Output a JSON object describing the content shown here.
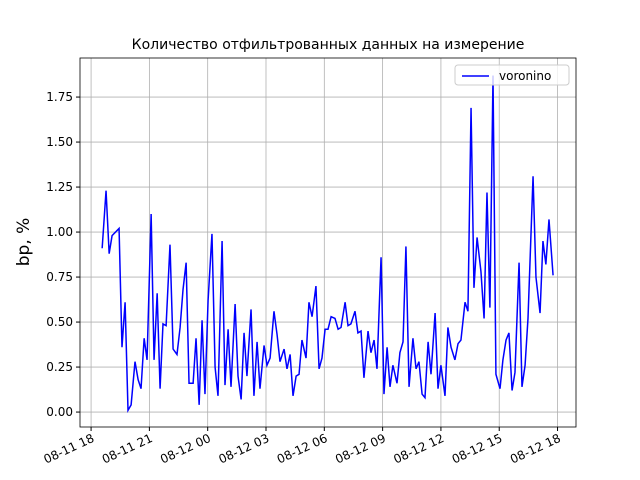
{
  "chart_data": {
    "type": "line",
    "title": "Количество отфильтрованных данных на измерение",
    "ylabel": "bp, %",
    "legend": "upper right",
    "grid": true,
    "xlim": [
      17.43,
      42.95
    ],
    "ylim": [
      -0.083,
      1.967
    ],
    "xticks": [
      {
        "value": 18,
        "label": "08-11 18"
      },
      {
        "value": 21,
        "label": "08-11 21"
      },
      {
        "value": 24,
        "label": "08-12 00"
      },
      {
        "value": 27,
        "label": "08-12 03"
      },
      {
        "value": 30,
        "label": "08-12 06"
      },
      {
        "value": 33,
        "label": "08-12 09"
      },
      {
        "value": 36,
        "label": "08-12 12"
      },
      {
        "value": 39,
        "label": "08-12 15"
      },
      {
        "value": 42,
        "label": "08-12 18"
      }
    ],
    "yticks": [
      {
        "value": 0,
        "label": "0.00"
      },
      {
        "value": 0.25,
        "label": "0.25"
      },
      {
        "value": 0.5,
        "label": "0.50"
      },
      {
        "value": 0.75,
        "label": "0.75"
      },
      {
        "value": 1,
        "label": "1.00"
      },
      {
        "value": 1.25,
        "label": "1.25"
      },
      {
        "value": 1.5,
        "label": "1.50"
      },
      {
        "value": 1.75,
        "label": "1.75"
      }
    ],
    "x": [
      18.57,
      18.77,
      18.93,
      19.08,
      19.44,
      19.59,
      19.75,
      19.9,
      20.06,
      20.26,
      20.42,
      20.57,
      20.73,
      20.88,
      21.09,
      21.24,
      21.4,
      21.55,
      21.7,
      21.86,
      22.06,
      22.22,
      22.42,
      22.58,
      22.73,
      22.89,
      23.04,
      23.25,
      23.4,
      23.56,
      23.71,
      23.86,
      24.02,
      24.22,
      24.38,
      24.53,
      24.74,
      24.89,
      25.05,
      25.2,
      25.41,
      25.56,
      25.72,
      25.87,
      26.02,
      26.23,
      26.38,
      26.54,
      26.69,
      26.9,
      27.05,
      27.21,
      27.41,
      27.57,
      27.72,
      27.93,
      28.08,
      28.24,
      28.39,
      28.55,
      28.7,
      28.85,
      29.06,
      29.21,
      29.37,
      29.57,
      29.73,
      29.88,
      30.04,
      30.19,
      30.35,
      30.55,
      30.71,
      30.86,
      31.07,
      31.22,
      31.37,
      31.58,
      31.73,
      31.89,
      32.04,
      32.25,
      32.4,
      32.56,
      32.71,
      32.92,
      33.07,
      33.23,
      33.38,
      33.53,
      33.74,
      33.89,
      34.05,
      34.2,
      34.36,
      34.56,
      34.72,
      34.87,
      35.03,
      35.18,
      35.34,
      35.49,
      35.7,
      35.85,
      36.0,
      36.21,
      36.36,
      36.52,
      36.72,
      36.88,
      37.03,
      37.24,
      37.39,
      37.55,
      37.7,
      37.86,
      38.06,
      38.22,
      38.37,
      38.52,
      38.68,
      38.83,
      39.04,
      39.19,
      39.35,
      39.5,
      39.66,
      39.81,
      40.02,
      40.17,
      40.33,
      40.48,
      40.74,
      40.89,
      41.1,
      41.25,
      41.4,
      41.56,
      41.77
    ],
    "series": [
      {
        "name": "voronino",
        "color": "#0000ff",
        "values": [
          0.91,
          1.23,
          0.88,
          0.98,
          1.02,
          0.36,
          0.61,
          0.01,
          0.04,
          0.28,
          0.18,
          0.13,
          0.41,
          0.29,
          1.1,
          0.29,
          0.66,
          0.13,
          0.49,
          0.48,
          0.93,
          0.35,
          0.32,
          0.47,
          0.68,
          0.83,
          0.16,
          0.16,
          0.41,
          0.04,
          0.51,
          0.1,
          0.62,
          0.99,
          0.25,
          0.09,
          0.95,
          0.15,
          0.46,
          0.14,
          0.6,
          0.2,
          0.07,
          0.44,
          0.2,
          0.57,
          0.09,
          0.39,
          0.13,
          0.37,
          0.26,
          0.3,
          0.56,
          0.43,
          0.28,
          0.35,
          0.24,
          0.32,
          0.09,
          0.2,
          0.21,
          0.4,
          0.3,
          0.61,
          0.53,
          0.7,
          0.24,
          0.3,
          0.46,
          0.46,
          0.53,
          0.52,
          0.46,
          0.47,
          0.61,
          0.48,
          0.49,
          0.56,
          0.44,
          0.45,
          0.19,
          0.45,
          0.33,
          0.4,
          0.24,
          0.86,
          0.1,
          0.36,
          0.14,
          0.26,
          0.16,
          0.33,
          0.39,
          0.92,
          0.14,
          0.41,
          0.24,
          0.28,
          0.1,
          0.08,
          0.39,
          0.21,
          0.55,
          0.13,
          0.26,
          0.09,
          0.47,
          0.36,
          0.29,
          0.38,
          0.4,
          0.61,
          0.56,
          1.69,
          0.69,
          0.97,
          0.78,
          0.52,
          1.22,
          0.58,
          1.87,
          0.21,
          0.13,
          0.29,
          0.4,
          0.44,
          0.12,
          0.22,
          0.83,
          0.14,
          0.26,
          0.52,
          1.31,
          0.75,
          0.55,
          0.95,
          0.82,
          1.07,
          0.76
        ]
      }
    ]
  }
}
